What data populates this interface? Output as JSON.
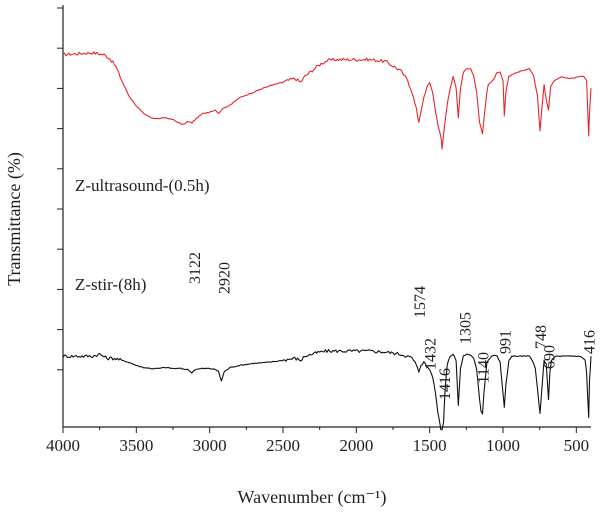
{
  "chart_data": {
    "type": "line",
    "title": "",
    "xlabel": "Wavenumber (cm⁻¹)",
    "ylabel": "Transmittance (%)",
    "xlim": [
      4000,
      400
    ],
    "x_reversed": true,
    "y_ticks_labeled": false,
    "grid": false,
    "x_ticks": [
      4000,
      3500,
      3000,
      2500,
      2000,
      1500,
      1000,
      500
    ],
    "series": [
      {
        "name": "Z-ultrasound-(0.5h)",
        "color": "#e8262a",
        "points": [
          [
            4000,
            89
          ],
          [
            3900,
            89.5
          ],
          [
            3800,
            90
          ],
          [
            3720,
            89
          ],
          [
            3680,
            87
          ],
          [
            3640,
            83
          ],
          [
            3600,
            76
          ],
          [
            3550,
            68
          ],
          [
            3500,
            63
          ],
          [
            3450,
            59
          ],
          [
            3400,
            57
          ],
          [
            3350,
            56.5
          ],
          [
            3300,
            57
          ],
          [
            3250,
            56
          ],
          [
            3200,
            54
          ],
          [
            3180,
            53.5
          ],
          [
            3150,
            55
          ],
          [
            3120,
            54.5
          ],
          [
            3100,
            56
          ],
          [
            3050,
            59
          ],
          [
            3000,
            60
          ],
          [
            2960,
            61
          ],
          [
            2940,
            59
          ],
          [
            2920,
            61
          ],
          [
            2900,
            62
          ],
          [
            2850,
            64
          ],
          [
            2800,
            67
          ],
          [
            2700,
            70
          ],
          [
            2600,
            73
          ],
          [
            2500,
            75
          ],
          [
            2420,
            77
          ],
          [
            2380,
            75
          ],
          [
            2350,
            78
          ],
          [
            2300,
            81
          ],
          [
            2250,
            84
          ],
          [
            2200,
            86
          ],
          [
            2150,
            86.5
          ],
          [
            2100,
            86.5
          ],
          [
            2000,
            86.5
          ],
          [
            1900,
            86.5
          ],
          [
            1800,
            85.5
          ],
          [
            1700,
            81
          ],
          [
            1650,
            76
          ],
          [
            1620,
            70
          ],
          [
            1590,
            61
          ],
          [
            1574,
            55
          ],
          [
            1550,
            64
          ],
          [
            1520,
            72
          ],
          [
            1500,
            75
          ],
          [
            1480,
            70
          ],
          [
            1460,
            60
          ],
          [
            1440,
            52
          ],
          [
            1432,
            50
          ],
          [
            1420,
            46
          ],
          [
            1416,
            41
          ],
          [
            1400,
            52
          ],
          [
            1380,
            64
          ],
          [
            1360,
            72
          ],
          [
            1340,
            78
          ],
          [
            1320,
            72
          ],
          [
            1305,
            57
          ],
          [
            1290,
            72
          ],
          [
            1270,
            80
          ],
          [
            1250,
            82
          ],
          [
            1220,
            82
          ],
          [
            1200,
            78
          ],
          [
            1180,
            70
          ],
          [
            1160,
            55
          ],
          [
            1140,
            49
          ],
          [
            1125,
            60
          ],
          [
            1110,
            70
          ],
          [
            1100,
            74
          ],
          [
            1080,
            75
          ],
          [
            1060,
            77
          ],
          [
            1040,
            80
          ],
          [
            1020,
            80
          ],
          [
            1000,
            76
          ],
          [
            991,
            58
          ],
          [
            980,
            70
          ],
          [
            960,
            78
          ],
          [
            900,
            80
          ],
          [
            860,
            81
          ],
          [
            820,
            82
          ],
          [
            790,
            78
          ],
          [
            765,
            68
          ],
          [
            748,
            50
          ],
          [
            735,
            62
          ],
          [
            720,
            74
          ],
          [
            705,
            66
          ],
          [
            690,
            61
          ],
          [
            675,
            73
          ],
          [
            650,
            76
          ],
          [
            600,
            78
          ],
          [
            560,
            77
          ],
          [
            520,
            77
          ],
          [
            480,
            78
          ],
          [
            450,
            78
          ],
          [
            430,
            76
          ],
          [
            416,
            48
          ],
          [
            410,
            60
          ],
          [
            400,
            72
          ]
        ]
      },
      {
        "name": "Z-stir-(8h)",
        "color": "#111111",
        "points": [
          [
            4000,
            36
          ],
          [
            3900,
            36
          ],
          [
            3800,
            36
          ],
          [
            3750,
            37
          ],
          [
            3700,
            35
          ],
          [
            3650,
            35
          ],
          [
            3600,
            34
          ],
          [
            3550,
            33
          ],
          [
            3500,
            31.5
          ],
          [
            3450,
            30.5
          ],
          [
            3400,
            30
          ],
          [
            3350,
            30
          ],
          [
            3300,
            30.5
          ],
          [
            3250,
            30
          ],
          [
            3200,
            30
          ],
          [
            3150,
            29.5
          ],
          [
            3122,
            28
          ],
          [
            3100,
            29.5
          ],
          [
            3050,
            30
          ],
          [
            3000,
            30
          ],
          [
            2960,
            29.5
          ],
          [
            2940,
            28.5
          ],
          [
            2920,
            24
          ],
          [
            2900,
            28.5
          ],
          [
            2860,
            30.5
          ],
          [
            2800,
            31.5
          ],
          [
            2700,
            32.5
          ],
          [
            2600,
            33
          ],
          [
            2500,
            34
          ],
          [
            2420,
            35
          ],
          [
            2380,
            34
          ],
          [
            2350,
            36
          ],
          [
            2300,
            37
          ],
          [
            2250,
            38
          ],
          [
            2200,
            38.5
          ],
          [
            2150,
            38.5
          ],
          [
            2100,
            38.5
          ],
          [
            2000,
            38.5
          ],
          [
            1900,
            38.5
          ],
          [
            1800,
            38
          ],
          [
            1700,
            37
          ],
          [
            1650,
            36
          ],
          [
            1620,
            35
          ],
          [
            1600,
            33
          ],
          [
            1574,
            28.5
          ],
          [
            1560,
            32
          ],
          [
            1540,
            33
          ],
          [
            1520,
            31
          ],
          [
            1500,
            29.5
          ],
          [
            1480,
            26
          ],
          [
            1460,
            18
          ],
          [
            1445,
            9
          ],
          [
            1432,
            4
          ],
          [
            1425,
            0.5
          ],
          [
            1416,
            0
          ],
          [
            1405,
            4
          ],
          [
            1395,
            20
          ],
          [
            1380,
            32
          ],
          [
            1360,
            36
          ],
          [
            1340,
            37
          ],
          [
            1320,
            34
          ],
          [
            1305,
            12
          ],
          [
            1290,
            30
          ],
          [
            1270,
            36
          ],
          [
            1250,
            37
          ],
          [
            1220,
            36.5
          ],
          [
            1200,
            35
          ],
          [
            1180,
            30
          ],
          [
            1160,
            15
          ],
          [
            1150,
            9
          ],
          [
            1140,
            8
          ],
          [
            1130,
            18
          ],
          [
            1110,
            33
          ],
          [
            1080,
            36
          ],
          [
            1060,
            36.5
          ],
          [
            1040,
            36
          ],
          [
            1020,
            33
          ],
          [
            1000,
            18
          ],
          [
            991,
            11
          ],
          [
            980,
            22
          ],
          [
            960,
            34
          ],
          [
            940,
            36
          ],
          [
            900,
            36
          ],
          [
            860,
            36
          ],
          [
            820,
            36
          ],
          [
            800,
            34
          ],
          [
            780,
            30
          ],
          [
            765,
            20
          ],
          [
            748,
            8
          ],
          [
            735,
            20
          ],
          [
            720,
            34
          ],
          [
            705,
            32
          ],
          [
            690,
            15
          ],
          [
            680,
            28
          ],
          [
            670,
            34
          ],
          [
            640,
            36
          ],
          [
            600,
            36
          ],
          [
            560,
            36
          ],
          [
            520,
            36
          ],
          [
            480,
            36
          ],
          [
            460,
            35.5
          ],
          [
            440,
            34
          ],
          [
            430,
            28
          ],
          [
            416,
            6
          ],
          [
            410,
            24
          ],
          [
            400,
            36
          ]
        ]
      }
    ],
    "annotations": [
      {
        "text": "3122",
        "x": 3122
      },
      {
        "text": "2920",
        "x": 2920
      },
      {
        "text": "1574",
        "x": 1574
      },
      {
        "text": "1432",
        "x": 1432
      },
      {
        "text": "1416",
        "x": 1416
      },
      {
        "text": "1305",
        "x": 1305
      },
      {
        "text": "1140",
        "x": 1140
      },
      {
        "text": "991",
        "x": 991
      },
      {
        "text": "748",
        "x": 748
      },
      {
        "text": "690",
        "x": 690
      },
      {
        "text": "416",
        "x": 416
      }
    ]
  }
}
